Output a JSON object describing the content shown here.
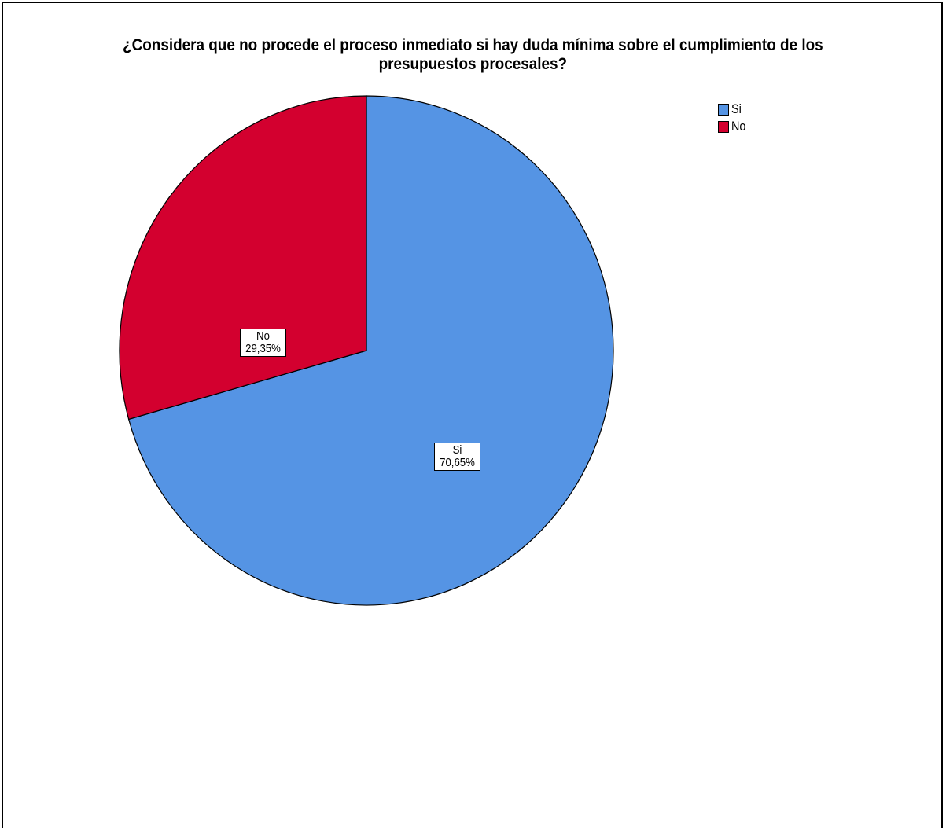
{
  "chart_data": {
    "type": "pie",
    "title_lines": [
      "¿Considera que no procede el proceso inmediato si hay duda mínima sobre el cumplimiento de los",
      "presupuestos procesales?"
    ],
    "legend_position": "top-right",
    "slices": [
      {
        "label": "Si",
        "value": 70.65,
        "value_text": "70,65%",
        "color": "#5594e4"
      },
      {
        "label": "No",
        "value": 29.35,
        "value_text": "29,35%",
        "color": "#d3002f"
      }
    ],
    "start_angle": "12 o'clock",
    "direction": "clockwise"
  }
}
